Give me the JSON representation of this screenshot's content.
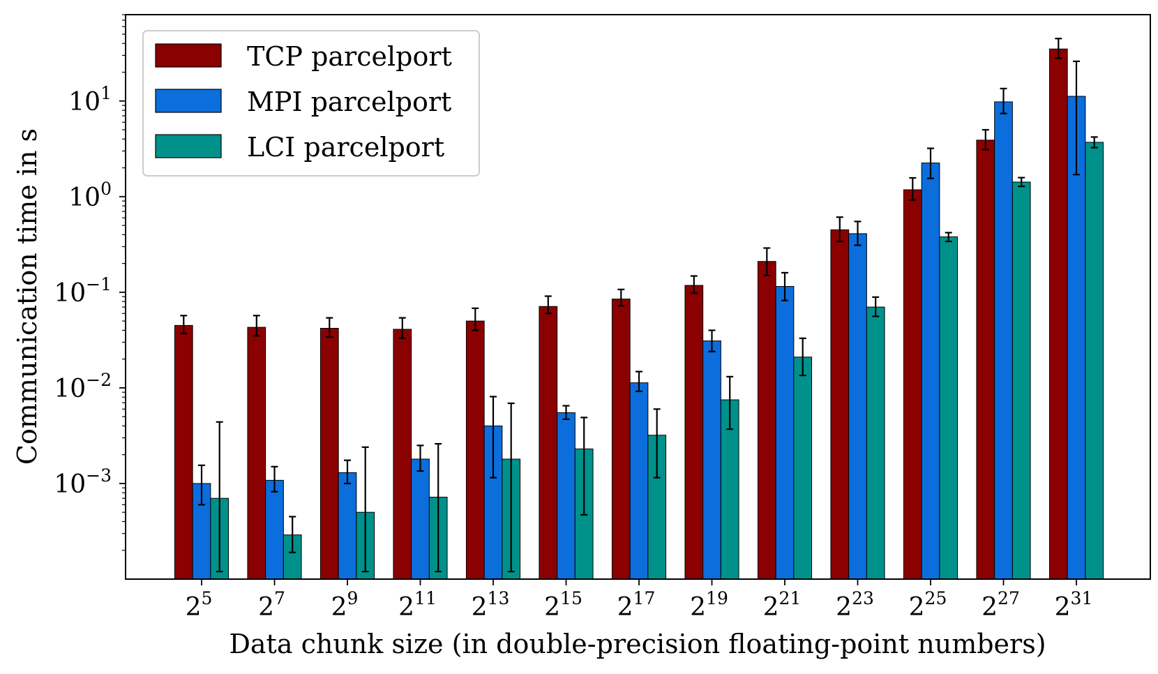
{
  "chart_data": {
    "type": "bar",
    "title": "",
    "xlabel": "Data chunk size (in double-precision floating-point numbers)",
    "ylabel": "Communication time in s",
    "yscale": "log",
    "ylim": [
      0.0001,
      80
    ],
    "legend_position": "top-left",
    "grid": false,
    "categories": [
      {
        "base": "2",
        "exp": "5"
      },
      {
        "base": "2",
        "exp": "7"
      },
      {
        "base": "2",
        "exp": "9"
      },
      {
        "base": "2",
        "exp": "11"
      },
      {
        "base": "2",
        "exp": "13"
      },
      {
        "base": "2",
        "exp": "15"
      },
      {
        "base": "2",
        "exp": "17"
      },
      {
        "base": "2",
        "exp": "19"
      },
      {
        "base": "2",
        "exp": "21"
      },
      {
        "base": "2",
        "exp": "23"
      },
      {
        "base": "2",
        "exp": "25"
      },
      {
        "base": "2",
        "exp": "27"
      },
      {
        "base": "2",
        "exp": "31"
      }
    ],
    "yticks": [
      {
        "value": 0.001,
        "base": "10",
        "exp": "−3"
      },
      {
        "value": 0.01,
        "base": "10",
        "exp": "−2"
      },
      {
        "value": 0.1,
        "base": "10",
        "exp": "−1"
      },
      {
        "value": 1,
        "base": "10",
        "exp": "0"
      },
      {
        "value": 10,
        "base": "10",
        "exp": "1"
      }
    ],
    "series": [
      {
        "name": "TCP parcelport",
        "color": "#8b0000",
        "values": [
          0.045,
          0.043,
          0.042,
          0.041,
          0.05,
          0.071,
          0.085,
          0.118,
          0.21,
          0.45,
          1.18,
          3.9,
          35
        ],
        "err_low": [
          0.037,
          0.035,
          0.034,
          0.033,
          0.04,
          0.06,
          0.072,
          0.098,
          0.15,
          0.34,
          0.92,
          3.1,
          28
        ],
        "err_high": [
          0.057,
          0.057,
          0.054,
          0.054,
          0.068,
          0.091,
          0.107,
          0.148,
          0.29,
          0.61,
          1.57,
          5.0,
          45
        ]
      },
      {
        "name": "MPI parcelport",
        "color": "#0b6edc",
        "values": [
          0.001,
          0.00108,
          0.0013,
          0.0018,
          0.004,
          0.0055,
          0.0113,
          0.031,
          0.115,
          0.41,
          2.25,
          9.8,
          11.2
        ],
        "err_low": [
          0.0006,
          0.00082,
          0.001,
          0.00135,
          0.00115,
          0.0047,
          0.0092,
          0.024,
          0.082,
          0.31,
          1.55,
          7.4,
          1.7
        ],
        "err_high": [
          0.00155,
          0.0015,
          0.00175,
          0.0025,
          0.0081,
          0.0065,
          0.0148,
          0.04,
          0.16,
          0.55,
          3.2,
          13.5,
          26
        ]
      },
      {
        "name": "LCI parcelport",
        "color": "#00918b",
        "values": [
          0.0007,
          0.00029,
          0.0005,
          0.00072,
          0.0018,
          0.0023,
          0.0032,
          0.0075,
          0.021,
          0.07,
          0.38,
          1.42,
          3.7
        ],
        "err_low": [
          0.00012,
          0.00019,
          0.00012,
          0.00012,
          0.00012,
          0.00047,
          0.00115,
          0.0037,
          0.0135,
          0.056,
          0.34,
          1.28,
          3.25
        ],
        "err_high": [
          0.0044,
          0.00045,
          0.0024,
          0.0026,
          0.0069,
          0.0049,
          0.006,
          0.0131,
          0.033,
          0.089,
          0.42,
          1.58,
          4.2
        ]
      }
    ]
  }
}
